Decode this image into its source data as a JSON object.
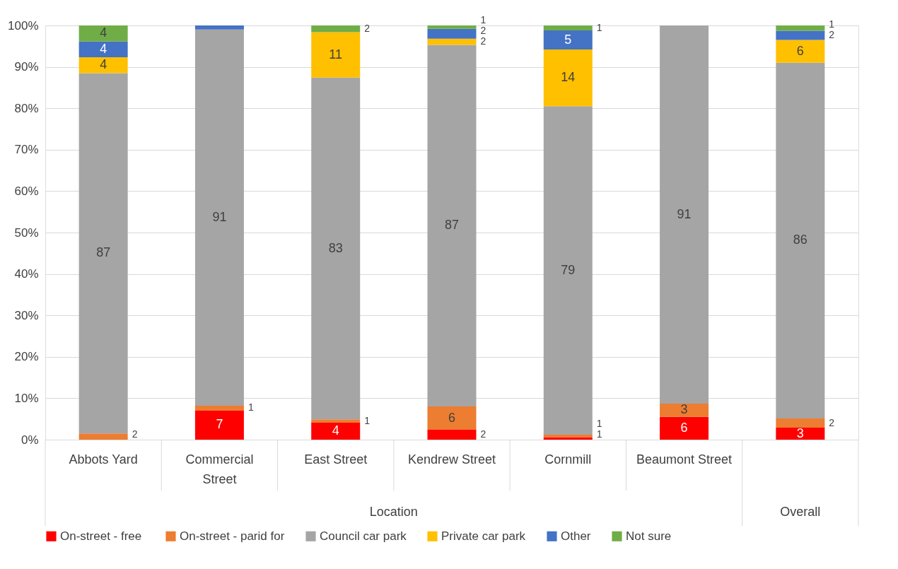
{
  "chart_data": {
    "type": "bar",
    "stacked": true,
    "categories": [
      "Abbots Yard",
      "Commercial Street",
      "East Street",
      "Kendrew Street",
      "Cornmill",
      "Beaumont Street",
      null
    ],
    "series": [
      {
        "name": "On-street -  free",
        "color": "#ff0000",
        "values": [
          0,
          7,
          4.1,
          2.4,
          0.6,
          5.5,
          2.9
        ],
        "value_labels": [
          null,
          "7",
          "4",
          "2",
          "1",
          "6",
          "3"
        ]
      },
      {
        "name": "On-street - parid for",
        "color": "#ed7d31",
        "values": [
          1.5,
          1.2,
          0.8,
          5.6,
          0.6,
          3.2,
          2.2
        ],
        "value_labels": [
          "2",
          "1",
          "1",
          "6",
          "1",
          "3",
          "2"
        ]
      },
      {
        "name": "Council car park",
        "color": "#a5a5a5",
        "values": [
          87,
          90.8,
          82.5,
          87.3,
          79.3,
          91.3,
          85.9
        ],
        "value_labels": [
          "87",
          "91",
          "83",
          "87",
          "79",
          "91",
          "86"
        ]
      },
      {
        "name": "Private car park",
        "color": "#ffc000",
        "values": [
          3.8,
          0,
          11,
          1.5,
          13.7,
          0,
          5.5
        ],
        "value_labels": [
          "4",
          null,
          "11",
          "2",
          "14",
          null,
          "6"
        ]
      },
      {
        "name": "Other",
        "color": "#4472c4",
        "values": [
          3.8,
          1,
          0,
          2.4,
          4.6,
          0,
          2.2
        ],
        "value_labels": [
          "4",
          null,
          null,
          "2",
          "5",
          null,
          "2"
        ]
      },
      {
        "name": "Not sure",
        "color": "#70ad47",
        "values": [
          3.9,
          0,
          1.6,
          0.8,
          1.2,
          0,
          1.3
        ],
        "value_labels": [
          "4",
          null,
          "2",
          "1",
          "1",
          null,
          "1"
        ]
      }
    ],
    "ylim": [
      0,
      100
    ],
    "yticks": [
      {
        "value": 0,
        "label": "0%"
      },
      {
        "value": 10,
        "label": "10%"
      },
      {
        "value": 20,
        "label": "20%"
      },
      {
        "value": 30,
        "label": "30%"
      },
      {
        "value": 40,
        "label": "40%"
      },
      {
        "value": 50,
        "label": "50%"
      },
      {
        "value": 60,
        "label": "60%"
      },
      {
        "value": 70,
        "label": "70%"
      },
      {
        "value": 80,
        "label": "80%"
      },
      {
        "value": 90,
        "label": "90%"
      },
      {
        "value": 100,
        "label": "100%"
      }
    ],
    "grid": "y",
    "legend": "bottom",
    "annotations": [
      "Location",
      "Overall"
    ]
  }
}
